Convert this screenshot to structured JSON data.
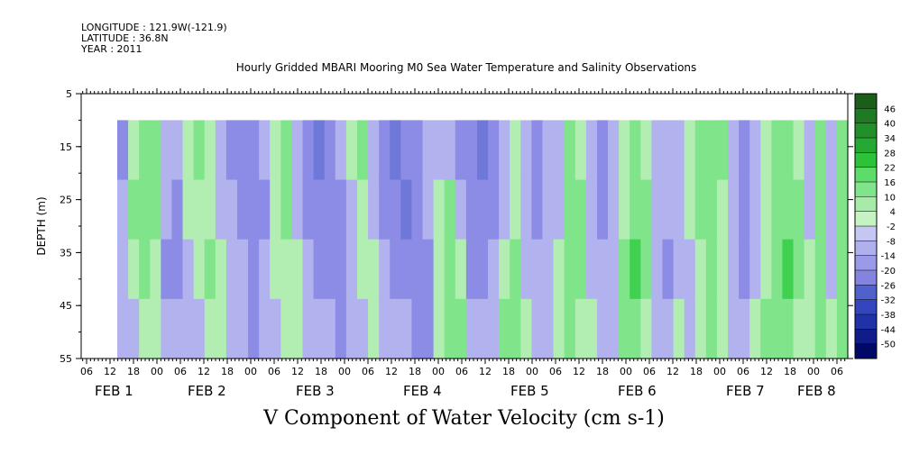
{
  "meta": {
    "longitude": "LONGITUDE : 121.9W(-121.9)",
    "latitude": "LATITUDE : 36.8N",
    "year": "YEAR : 2011"
  },
  "chart_data": {
    "type": "heatmap",
    "title": "Hourly Gridded MBARI Mooring M0 Sea Water Temperature and Salinity Observations",
    "xlabel": "V Component of Water Velocity (cm s-1)",
    "ylabel": "DEPTH (m)",
    "y_ticks": [
      "5",
      "15",
      "25",
      "35",
      "45",
      "55"
    ],
    "y_range": [
      5,
      55
    ],
    "y_inverted": true,
    "data_depth_range": [
      10,
      55
    ],
    "x_hour_labels": [
      "06",
      "12",
      "18",
      "00",
      "06",
      "12",
      "18",
      "00",
      "06",
      "12",
      "18",
      "00",
      "06",
      "12",
      "18",
      "00",
      "06",
      "12",
      "18",
      "00",
      "06",
      "12",
      "18",
      "00",
      "06",
      "12",
      "18",
      "00",
      "06",
      "12",
      "18",
      "00",
      "06"
    ],
    "date_labels": [
      {
        "label": "FEB",
        "day": "1"
      },
      {
        "label": "FEB",
        "day": "2"
      },
      {
        "label": "FEB",
        "day": "3"
      },
      {
        "label": "FEB",
        "day": "4"
      },
      {
        "label": "FEB",
        "day": "5"
      },
      {
        "label": "FEB",
        "day": "6"
      },
      {
        "label": "FEB",
        "day": "7"
      },
      {
        "label": "FEB",
        "day": "8"
      }
    ],
    "colorbar_levels": [
      "46",
      "40",
      "34",
      "28",
      "22",
      "16",
      "10",
      "4",
      "-2",
      "-8",
      "-14",
      "-20",
      "-26",
      "-32",
      "-38",
      "-44",
      "-50"
    ],
    "colorbar_range": [
      -50,
      52
    ],
    "colors": {
      "negative_light": "#b2b2ee",
      "negative_mid": "#8c8ce6",
      "negative_dark": "#6d78d8",
      "positive_light": "#b2eeb2",
      "positive_mid": "#80e48a",
      "positive_dark": "#3fd14f"
    },
    "time_columns_v_cm_s": [
      [
        -10,
        -8,
        -6,
        -4
      ],
      [
        6,
        8,
        6,
        -2
      ],
      [
        10,
        12,
        10,
        4
      ],
      [
        8,
        10,
        6,
        2
      ],
      [
        -4,
        -8,
        -10,
        -6
      ],
      [
        -8,
        -10,
        -12,
        -8
      ],
      [
        6,
        2,
        -4,
        -8
      ],
      [
        10,
        6,
        2,
        -2
      ],
      [
        4,
        6,
        8,
        4
      ],
      [
        -6,
        -4,
        2,
        6
      ],
      [
        -10,
        -8,
        -6,
        -4
      ],
      [
        -14,
        -12,
        -8,
        -6
      ],
      [
        -10,
        -12,
        -14,
        -10
      ],
      [
        -8,
        -10,
        -8,
        -6
      ],
      [
        6,
        4,
        2,
        -2
      ],
      [
        8,
        10,
        6,
        4
      ],
      [
        -4,
        -2,
        2,
        4
      ],
      [
        -12,
        -10,
        -8,
        -6
      ],
      [
        -16,
        -14,
        -12,
        -8
      ],
      [
        -14,
        -12,
        -10,
        -8
      ],
      [
        -8,
        -10,
        -12,
        -10
      ],
      [
        4,
        -2,
        -6,
        -8
      ],
      [
        8,
        4,
        2,
        -4
      ],
      [
        -6,
        -4,
        2,
        6
      ],
      [
        -14,
        -10,
        -6,
        -2
      ],
      [
        -18,
        -14,
        -10,
        -6
      ],
      [
        -14,
        -16,
        -12,
        -8
      ],
      [
        -10,
        -12,
        -14,
        -10
      ],
      [
        -6,
        -8,
        -10,
        -12
      ],
      [
        -2,
        2,
        6,
        4
      ],
      [
        -6,
        8,
        12,
        10
      ],
      [
        -10,
        -8,
        4,
        8
      ],
      [
        -14,
        -12,
        -10,
        -6
      ],
      [
        -16,
        -14,
        -12,
        -8
      ],
      [
        -12,
        -10,
        -6,
        -4
      ],
      [
        -4,
        -2,
        4,
        8
      ],
      [
        2,
        4,
        8,
        10
      ],
      [
        -8,
        -6,
        -4,
        2
      ],
      [
        -12,
        -10,
        -8,
        -6
      ],
      [
        -8,
        -6,
        -4,
        -2
      ],
      [
        -4,
        -2,
        2,
        4
      ],
      [
        8,
        10,
        12,
        8
      ],
      [
        6,
        8,
        10,
        4
      ],
      [
        -6,
        -4,
        -2,
        2
      ],
      [
        -10,
        -12,
        -8,
        -4
      ],
      [
        -6,
        -8,
        -6,
        -4
      ],
      [
        4,
        6,
        8,
        10
      ],
      [
        10,
        12,
        14,
        10
      ],
      [
        6,
        8,
        10,
        6
      ],
      [
        -4,
        -6,
        -8,
        -6
      ],
      [
        -6,
        -8,
        -10,
        -8
      ],
      [
        -2,
        -4,
        -2,
        2
      ],
      [
        6,
        4,
        -4,
        -6
      ],
      [
        10,
        8,
        6,
        4
      ],
      [
        12,
        10,
        12,
        10
      ],
      [
        8,
        6,
        4,
        2
      ],
      [
        -4,
        -6,
        -8,
        -4
      ],
      [
        -10,
        -12,
        -10,
        -6
      ],
      [
        -6,
        -8,
        -4,
        2
      ],
      [
        4,
        2,
        6,
        8
      ],
      [
        10,
        8,
        10,
        12
      ],
      [
        8,
        12,
        14,
        12
      ],
      [
        6,
        8,
        10,
        6
      ],
      [
        -4,
        -2,
        4,
        6
      ],
      [
        8,
        10,
        12,
        10
      ],
      [
        -6,
        -4,
        -2,
        2
      ],
      [
        10,
        12,
        10,
        8
      ]
    ]
  }
}
